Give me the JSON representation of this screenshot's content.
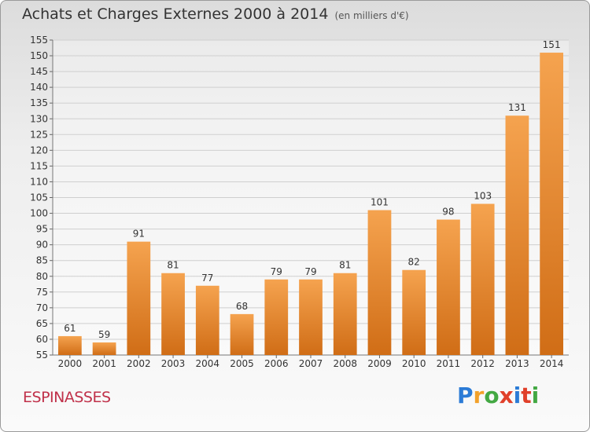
{
  "header": {
    "title": "Achats et Charges Externes 2000 à 2014",
    "subtitle": "(en milliers d'€)"
  },
  "footer": {
    "place": "ESPINASSES",
    "brand": {
      "letters": [
        "P",
        "r",
        "o",
        "x",
        "i",
        "t",
        "i"
      ],
      "colors": [
        "#2b7bd6",
        "#f2a12a",
        "#43a843",
        "#e0402a",
        "#2b7bd6",
        "#e0402a",
        "#43a843"
      ]
    }
  },
  "colors": {
    "bar_top": "#f5a34f",
    "bar_bottom": "#d06d16",
    "grid": "#cfcfcf",
    "axis_text": "#333333"
  },
  "chart_data": {
    "type": "bar",
    "title": "Achats et Charges Externes 2000 à 2014",
    "subtitle": "(en milliers d'€)",
    "categories": [
      "2000",
      "2001",
      "2002",
      "2003",
      "2004",
      "2005",
      "2006",
      "2007",
      "2008",
      "2009",
      "2010",
      "2011",
      "2012",
      "2013",
      "2014"
    ],
    "values": [
      61,
      59,
      91,
      81,
      77,
      68,
      79,
      79,
      81,
      101,
      82,
      98,
      103,
      131,
      151
    ],
    "ylim": [
      55,
      155
    ],
    "ytick_step": 5,
    "grid": true,
    "data_labels": true
  }
}
